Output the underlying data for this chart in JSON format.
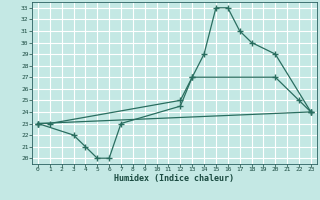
{
  "xlabel": "Humidex (Indice chaleur)",
  "bg_color": "#c4e8e4",
  "grid_color": "#ffffff",
  "line_color": "#2a6e60",
  "xlim": [
    -0.5,
    23.5
  ],
  "ylim": [
    19.5,
    33.5
  ],
  "xticks": [
    0,
    1,
    2,
    3,
    4,
    5,
    6,
    7,
    8,
    9,
    10,
    11,
    12,
    13,
    14,
    15,
    16,
    17,
    18,
    19,
    20,
    21,
    22,
    23
  ],
  "yticks": [
    20,
    21,
    22,
    23,
    24,
    25,
    26,
    27,
    28,
    29,
    30,
    31,
    32,
    33
  ],
  "series": [
    {
      "x": [
        0,
        1,
        12,
        13,
        14,
        15,
        16,
        17,
        18,
        20,
        23
      ],
      "y": [
        23.0,
        23.0,
        25.0,
        27.0,
        29.0,
        33.0,
        33.0,
        31.0,
        30.0,
        29.0,
        24.0
      ]
    },
    {
      "x": [
        0,
        3,
        4,
        5,
        6,
        7,
        12,
        13,
        20,
        22,
        23
      ],
      "y": [
        23.0,
        22.0,
        21.0,
        20.0,
        20.0,
        23.0,
        24.5,
        27.0,
        27.0,
        25.0,
        24.0
      ]
    },
    {
      "x": [
        0,
        23
      ],
      "y": [
        23.0,
        24.0
      ]
    }
  ]
}
